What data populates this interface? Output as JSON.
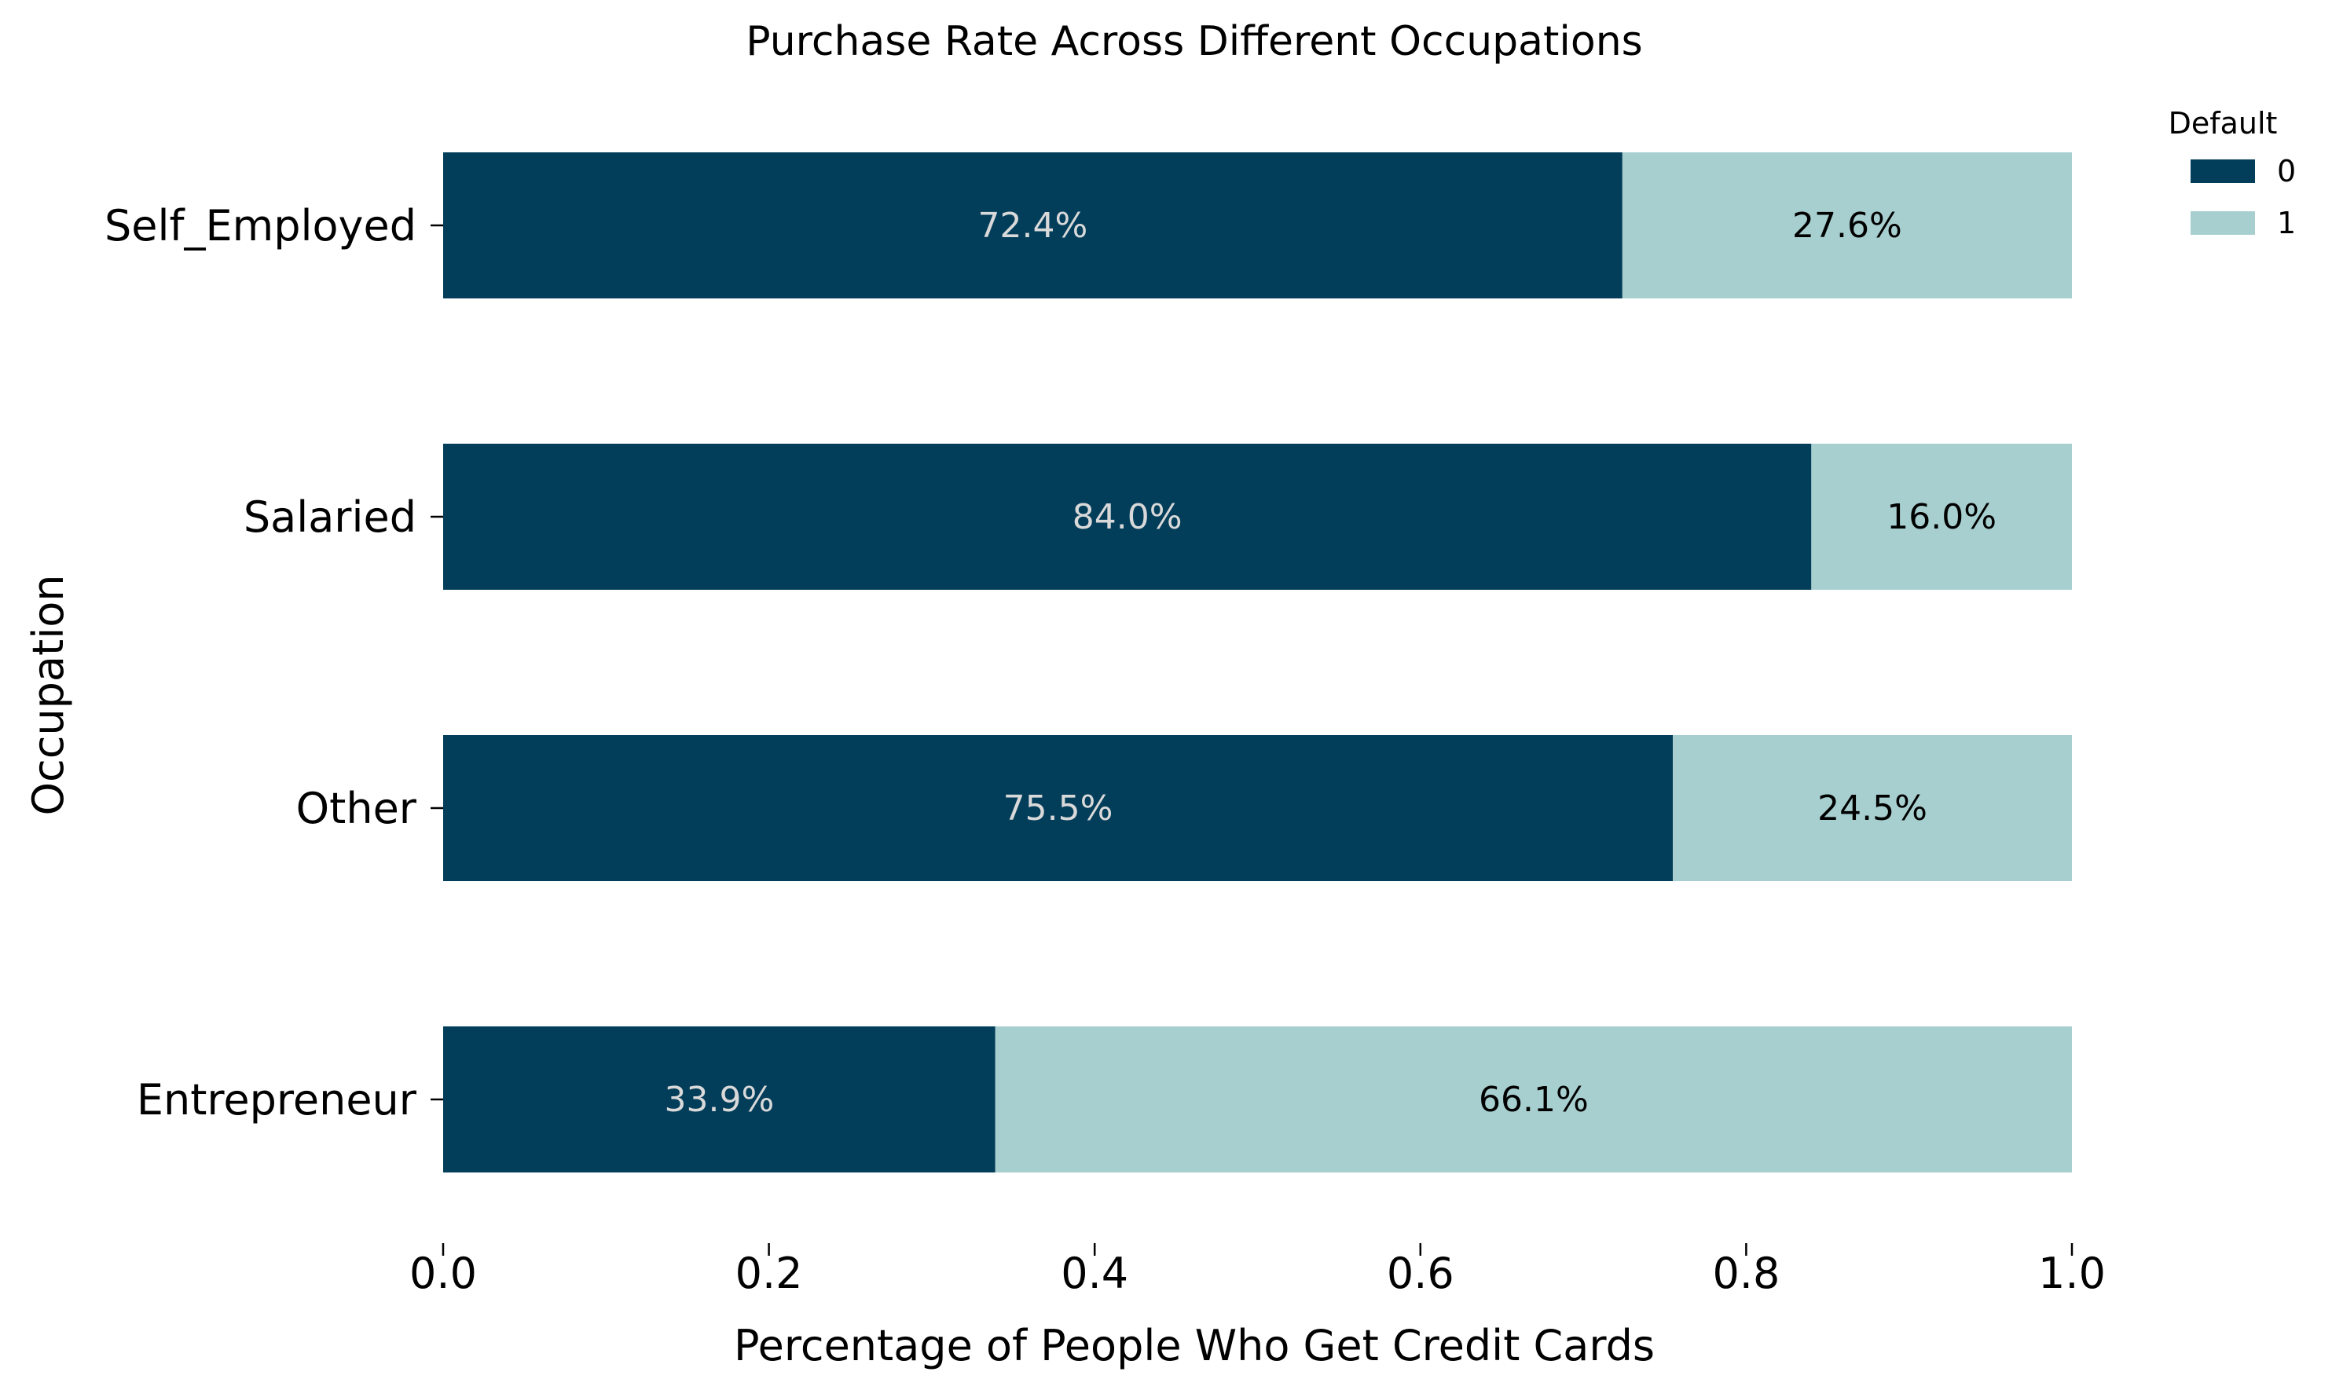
{
  "chart_data": {
    "type": "bar",
    "orientation": "horizontal",
    "stacked": true,
    "title": "Purchase Rate Across Different Occupations",
    "xlabel": "Percentage of People Who Get Credit Cards",
    "ylabel": "Occupation",
    "categories": [
      "Entrepreneur",
      "Other",
      "Salaried",
      "Self_Employed"
    ],
    "xlim": [
      0.0,
      1.0
    ],
    "x_ticks": [
      0.0,
      0.2,
      0.4,
      0.6,
      0.8,
      1.0
    ],
    "x_tick_labels": [
      "0.0",
      "0.2",
      "0.4",
      "0.6",
      "0.8",
      "1.0"
    ],
    "grid": false,
    "legend": {
      "title": "Default",
      "position": "top-right outside"
    },
    "series": [
      {
        "name": "0",
        "color": "#023d5a",
        "label_color": "#d9d9d9",
        "values": [
          0.339,
          0.755,
          0.84,
          0.724
        ],
        "labels": [
          "33.9%",
          "75.5%",
          "84.0%",
          "72.4%"
        ]
      },
      {
        "name": "1",
        "color": "#a8cfd0",
        "label_color": "#000000",
        "values": [
          0.661,
          0.245,
          0.16,
          0.276
        ],
        "labels": [
          "66.1%",
          "24.5%",
          "16.0%",
          "27.6%"
        ]
      }
    ]
  }
}
